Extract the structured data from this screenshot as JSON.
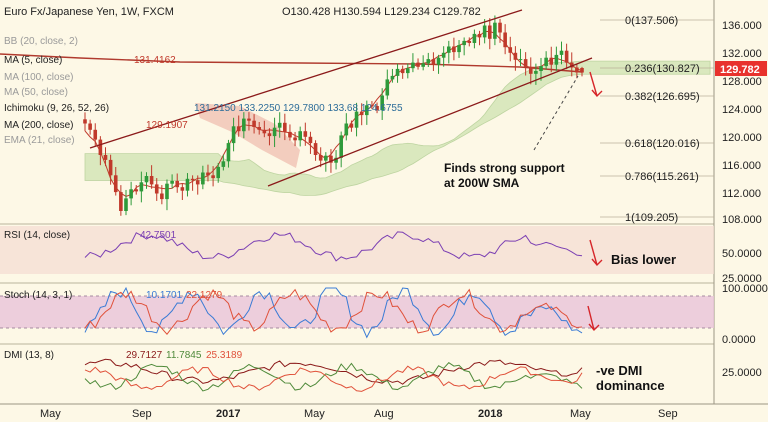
{
  "header": {
    "title": "Euro Fx/Japanese Yen, 1W, FXCM",
    "ohlc": "O130.428  H130.594  L129.234  C129.782"
  },
  "overlays": [
    {
      "label": "BB (20, close, 2)",
      "value": ""
    },
    {
      "label": "MA (5, close)",
      "value": "131.4162"
    },
    {
      "label": "MA (100, close)",
      "value": ""
    },
    {
      "label": "MA (50, close)",
      "value": ""
    },
    {
      "label": "Ichimoku (9, 26, 52, 26)",
      "value": "131.2150   133.2250   129.7800 133.68   124.6755"
    },
    {
      "label": "MA (200, close)",
      "value": "129.1907"
    },
    {
      "label": "EMA (21, close)",
      "value": ""
    }
  ],
  "price_axis": {
    "ticks": [
      "136.000",
      "132.000",
      "128.000",
      "124.000",
      "120.000",
      "116.000",
      "112.000",
      "108.000"
    ],
    "current": "129.782"
  },
  "fib_levels": [
    "0(137.506)",
    "0.236(130.827)",
    "0.382(126.695)",
    "0.618(120.016)",
    "0.786(115.261)",
    "1(109.205)"
  ],
  "annotations": {
    "support": [
      "Finds strong support",
      "at 200W SMA"
    ],
    "rsi": "Bias lower",
    "dmi": [
      "-ve DMI",
      "dominance"
    ]
  },
  "rsi": {
    "label": "RSI (14, close)",
    "value": "42.7501",
    "ticks": [
      "50.0000",
      "25.0000"
    ]
  },
  "stoch": {
    "label": "Stoch (14, 3, 1)",
    "k": "10.1701",
    "d": "22.1279",
    "ticks": [
      "100.0000",
      "0.0000"
    ]
  },
  "dmi": {
    "label": "DMI (13, 8)",
    "adx": "29.7127",
    "plus": "11.7845",
    "minus": "25.3189",
    "ticks": [
      "25.0000"
    ]
  },
  "time_axis": [
    "May",
    "Sep",
    "2017",
    "May",
    "Aug",
    "2018",
    "May",
    "Sep"
  ],
  "colors": {
    "up": "#2e9a3a",
    "down": "#c0392b",
    "cloud_green": "#cfe3b1",
    "cloud_red": "#f1c6b6",
    "channel": "#8b1a1a",
    "ma200": "#b03a2e",
    "rsi": "#7b3fb3",
    "stoch_k": "#3a7bd5",
    "stoch_d": "#e0513a",
    "adx": "#8b1a1a",
    "plus_di": "#4f8a3a",
    "minus_di": "#e0513a",
    "price_tag": "#e8322d"
  },
  "chart_data": [
    {
      "type": "candlestick",
      "title": "Euro Fx/Japanese Yen, 1W, FXCM",
      "ylim": [
        107,
        139
      ],
      "x_labels": [
        "May",
        "Sep",
        "2017",
        "May",
        "Aug",
        "2018",
        "May",
        "Sep"
      ],
      "close_path": [
        122.5,
        121.6,
        120.2,
        118.0,
        117.3,
        115.1,
        112.7,
        110.0,
        111.8,
        113.1,
        112.8,
        114.1,
        115.0,
        113.8,
        112.5,
        111.7,
        113.9,
        114.3,
        113.4,
        112.9,
        114.6,
        114.4,
        113.8,
        115.5,
        115.1,
        114.7,
        116.3,
        117.1,
        119.7,
        122.1,
        121.4,
        123.2,
        122.9,
        122.0,
        121.6,
        121.1,
        120.7,
        121.9,
        122.6,
        121.3,
        120.5,
        120.1,
        121.4,
        120.6,
        119.7,
        118.0,
        117.2,
        117.9,
        116.9,
        117.6,
        120.8,
        122.5,
        121.9,
        124.2,
        123.7,
        125.1,
        125.0,
        124.4,
        126.5,
        128.8,
        129.3,
        130.3,
        129.7,
        130.4,
        131.2,
        130.6,
        131.1,
        131.7,
        130.9,
        131.9,
        132.6,
        133.5,
        132.7,
        133.7,
        134.3,
        134.0,
        135.3,
        134.8,
        136.5,
        134.6,
        136.9,
        135.5,
        133.4,
        132.6,
        131.6,
        131.7,
        130.6,
        129.6,
        130.0,
        130.7,
        131.9,
        130.9,
        132.3,
        132.9,
        131.2,
        130.5,
        129.8
      ],
      "close": 129.782,
      "open": 130.428,
      "high": 130.594,
      "low": 129.234,
      "ma_5": 131.4162,
      "ma_200": 129.1907,
      "ichimoku": [
        131.215,
        133.225,
        129.78,
        133.68,
        124.6755
      ],
      "fibonacci": [
        [
          0,
          137.506
        ],
        [
          0.236,
          130.827
        ],
        [
          0.382,
          126.695
        ],
        [
          0.618,
          120.016
        ],
        [
          0.786,
          115.261
        ],
        [
          1,
          109.205
        ]
      ]
    },
    {
      "type": "line",
      "title": "RSI (14, close)",
      "series": [
        {
          "name": "RSI",
          "last": 42.7501
        }
      ],
      "y_ticks": [
        50,
        25
      ]
    },
    {
      "type": "line",
      "title": "Stoch (14, 3, 1)",
      "series": [
        {
          "name": "%K",
          "last": 10.1701
        },
        {
          "name": "%D",
          "last": 22.1279
        }
      ],
      "y_ticks": [
        100,
        0
      ],
      "bands": [
        20,
        80
      ]
    },
    {
      "type": "line",
      "title": "DMI (13, 8)",
      "series": [
        {
          "name": "ADX",
          "last": 29.7127
        },
        {
          "name": "+DI",
          "last": 11.7845
        },
        {
          "name": "-DI",
          "last": 25.3189
        }
      ],
      "y_ticks": [
        25
      ]
    }
  ]
}
